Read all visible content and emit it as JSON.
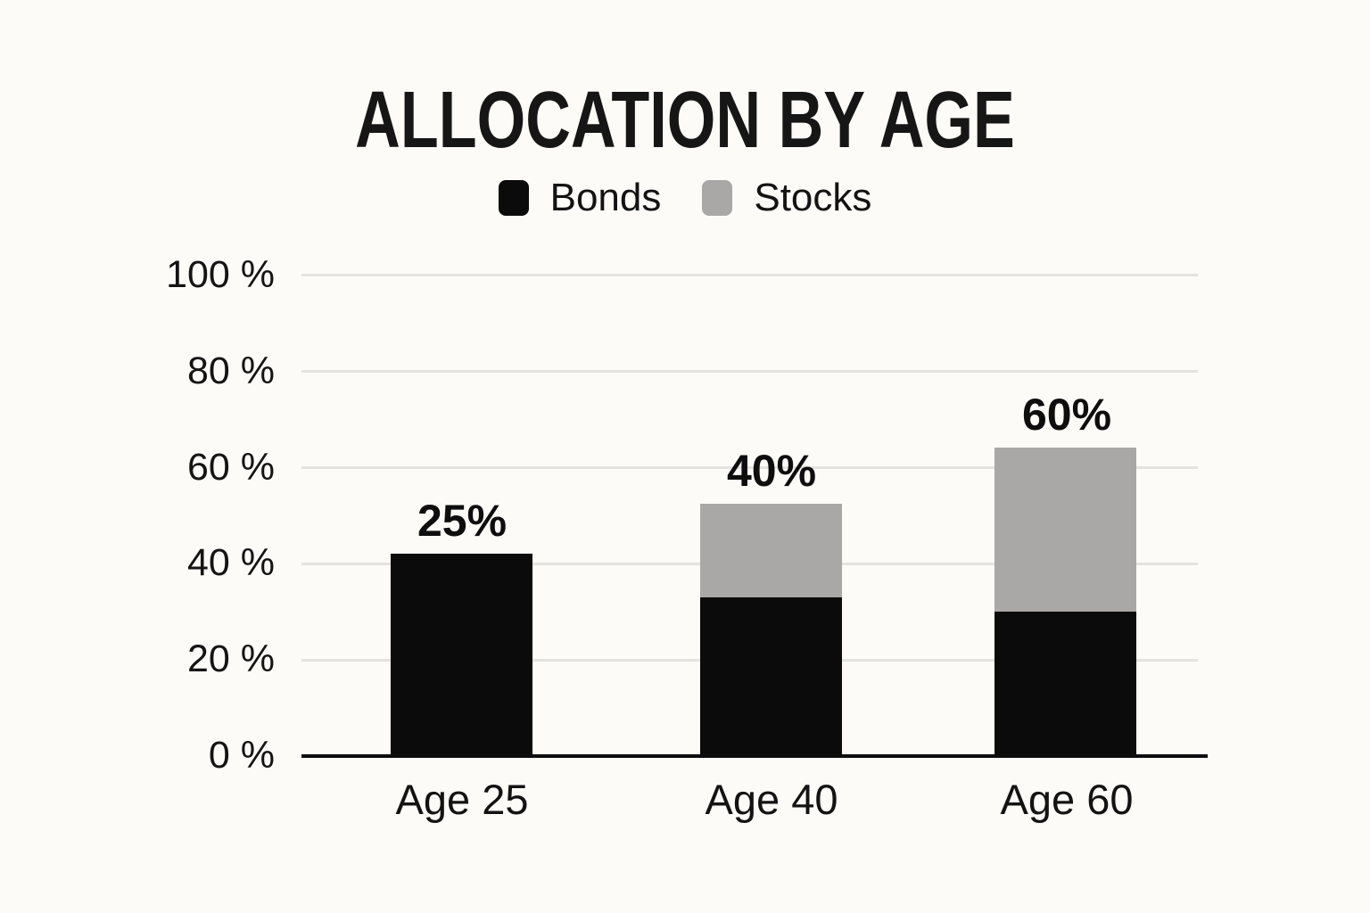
{
  "chart": {
    "title": "ALLOCATION BY AGE"
  },
  "colors": {
    "bonds": "#0b0b0b",
    "stocks": "#a9a8a6",
    "gridline": "#e4e3e0",
    "axis": "#0d0d0d",
    "background": "#fcfbf8",
    "text": "#131313"
  },
  "chart_data": {
    "type": "bar",
    "stacked": true,
    "title": "ALLOCATION BY AGE",
    "categories": [
      "Age 25",
      "Age 40",
      "Age 60"
    ],
    "series": [
      {
        "name": "Bonds",
        "color": "#0b0b0b",
        "values": [
          42,
          33,
          30
        ]
      },
      {
        "name": "Stocks",
        "color": "#a9a8a6",
        "values": [
          0,
          19.5,
          34
        ]
      }
    ],
    "stack_totals_rendered": [
      42,
      52.5,
      64
    ],
    "bar_labels": [
      "25%",
      "40%",
      "60%"
    ],
    "yticks": [
      "100 %",
      "80 %",
      "60 %",
      "40 %",
      "20 %",
      "0 %"
    ],
    "ytick_values": [
      100,
      80,
      60,
      40,
      20,
      0
    ],
    "ylim": [
      0,
      100
    ],
    "grid": true,
    "legend_position": "top-center",
    "legend": [
      {
        "label": "Bonds",
        "color": "#0b0b0b"
      },
      {
        "label": "Stocks",
        "color": "#a9a8a6"
      }
    ]
  }
}
